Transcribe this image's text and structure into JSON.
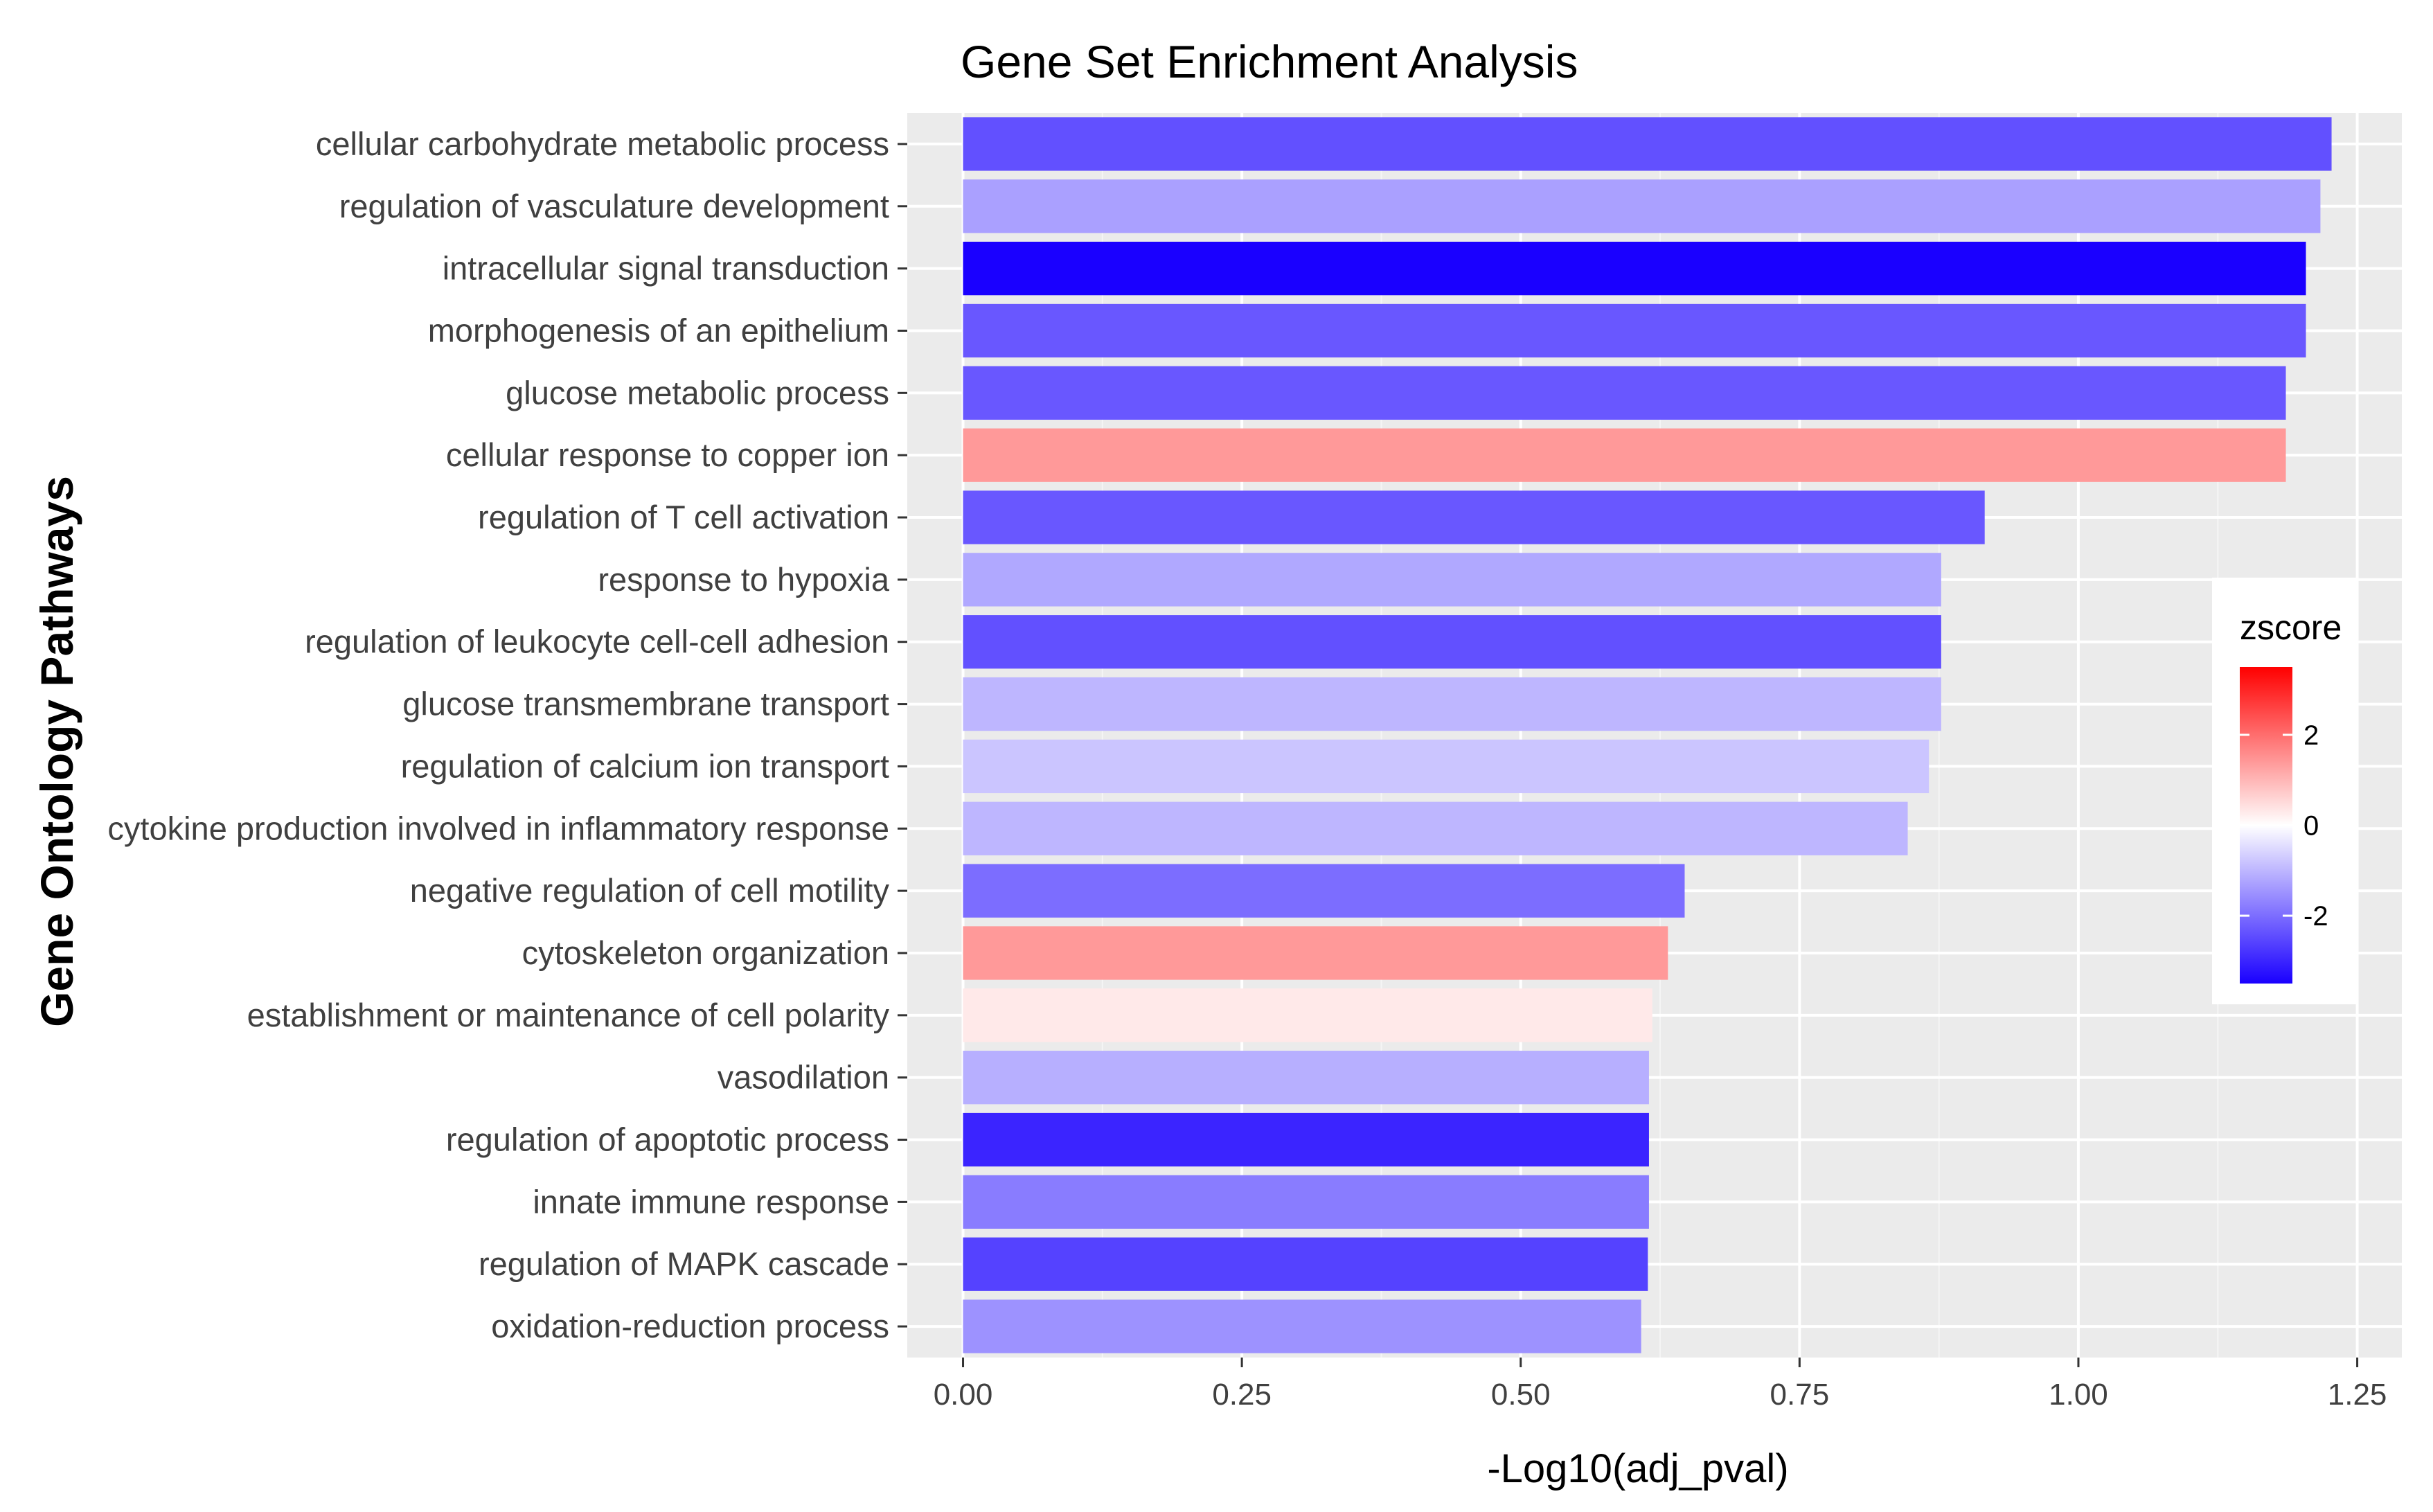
{
  "chart_data": {
    "type": "bar",
    "orientation": "horizontal",
    "title": "Gene Set Enrichment Analysis",
    "xlabel": "-Log10(adj_pval)",
    "ylabel": "Gene Ontology Pathways",
    "xlim": [
      -0.05,
      1.29
    ],
    "xticks": [
      0,
      0.25,
      0.5,
      0.75,
      1,
      1.25
    ],
    "xtick_labels": [
      "0.00",
      "0.25",
      "0.50",
      "0.75",
      "1.00",
      "1.25"
    ],
    "grid": true,
    "categories": [
      "cellular carbohydrate metabolic process",
      "regulation of vasculature development",
      "intracellular signal transduction",
      "morphogenesis of an epithelium",
      "glucose metabolic process",
      "cellular response to copper ion",
      "regulation of T cell activation",
      "response to hypoxia",
      "regulation of leukocyte cell-cell adhesion",
      "glucose transmembrane transport",
      "regulation of calcium ion transport",
      "cytokine production involved in inflammatory response",
      "negative regulation of cell motility",
      "cytoskeleton organization",
      "establishment or maintenance of cell polarity",
      "vasodilation",
      "regulation of apoptotic process",
      "innate immune response",
      "regulation of MAPK cascade",
      "oxidation-reduction process"
    ],
    "values": [
      1.227,
      1.217,
      1.204,
      1.204,
      1.186,
      1.186,
      0.916,
      0.877,
      0.877,
      0.877,
      0.866,
      0.847,
      0.647,
      0.632,
      0.618,
      0.615,
      0.615,
      0.615,
      0.614,
      0.608
    ],
    "zscore": [
      -2.4,
      -1.3,
      -3.5,
      -2.3,
      -2.3,
      1.4,
      -2.3,
      -1.2,
      -2.4,
      -1.0,
      -0.8,
      -1.0,
      -2.0,
      1.4,
      0.3,
      -1.1,
      -3.0,
      -1.8,
      -2.6,
      -1.5
    ],
    "legend": {
      "title": "zscore",
      "position": "right",
      "range": [
        -3.5,
        3.5
      ],
      "ticks": [
        2,
        0,
        -2
      ],
      "tick_labels": [
        "2",
        "0",
        "-2"
      ],
      "colors": {
        "low": "#1a00ff",
        "mid": "#ffffff",
        "high": "#ff0000"
      }
    },
    "colors": {
      "panel": "#ebebeb",
      "grid_major": "#ffffff",
      "grid_minor": "#f5f5f5"
    }
  }
}
